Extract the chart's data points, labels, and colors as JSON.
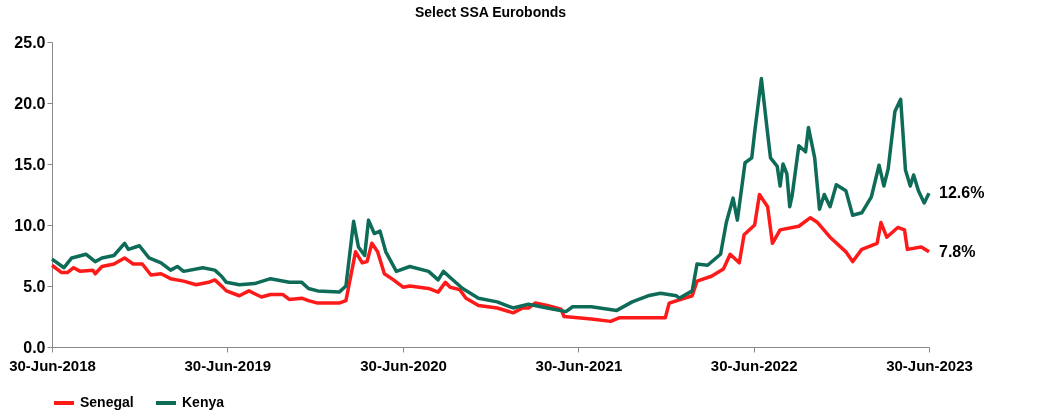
{
  "chart_data": {
    "type": "line",
    "title": "Select SSA Eurobonds",
    "xlim": [
      "2018-06-30",
      "2023-06-30"
    ],
    "xticks": [
      {
        "value": "2018-06-30",
        "label": "30-Jun-2018"
      },
      {
        "value": "2019-06-30",
        "label": "30-Jun-2019"
      },
      {
        "value": "2020-06-30",
        "label": "30-Jun-2020"
      },
      {
        "value": "2021-06-30",
        "label": "30-Jun-2021"
      },
      {
        "value": "2022-06-30",
        "label": "30-Jun-2022"
      },
      {
        "value": "2023-06-30",
        "label": "30-Jun-2023"
      }
    ],
    "ylim": [
      0,
      25
    ],
    "yticks": [
      {
        "value": 0,
        "label": "0.0"
      },
      {
        "value": 5,
        "label": "5.0"
      },
      {
        "value": 10,
        "label": "10.0"
      },
      {
        "value": 15,
        "label": "15.0"
      },
      {
        "value": 20,
        "label": "20.0"
      },
      {
        "value": 25,
        "label": "25.0"
      }
    ],
    "legend": "bottom",
    "series": [
      {
        "name": "Senegal",
        "color": "#ff1a1a",
        "x": [
          "2018-06-30",
          "2018-07-20",
          "2018-08-01",
          "2018-08-14",
          "2018-08-28",
          "2018-09-23",
          "2018-09-28",
          "2018-10-12",
          "2018-11-06",
          "2018-11-28",
          "2018-12-16",
          "2019-01-04",
          "2019-01-22",
          "2019-02-12",
          "2019-03-04",
          "2019-03-31",
          "2019-04-26",
          "2019-05-22",
          "2019-06-04",
          "2019-06-18",
          "2019-06-28",
          "2019-07-25",
          "2019-08-14",
          "2019-09-09",
          "2019-09-28",
          "2019-10-24",
          "2019-11-06",
          "2019-12-02",
          "2019-12-16",
          "2020-01-04",
          "2020-02-18",
          "2020-03-03",
          "2020-03-23",
          "2020-04-06",
          "2020-04-16",
          "2020-04-26",
          "2020-05-08",
          "2020-05-22",
          "2020-06-10",
          "2020-06-30",
          "2020-07-14",
          "2020-08-22",
          "2020-09-11",
          "2020-09-26",
          "2020-10-06",
          "2020-10-26",
          "2020-11-08",
          "2020-12-04",
          "2021-01-12",
          "2021-02-14",
          "2021-03-06",
          "2021-03-18",
          "2021-04-01",
          "2021-04-26",
          "2021-05-25",
          "2021-05-31",
          "2021-07-27",
          "2021-09-05",
          "2021-09-24",
          "2021-11-22",
          "2021-12-28",
          "2022-01-05",
          "2022-02-22",
          "2022-03-04",
          "2022-04-03",
          "2022-04-28",
          "2022-05-12",
          "2022-05-31",
          "2022-06-10",
          "2022-07-02",
          "2022-07-12",
          "2022-07-29",
          "2022-08-08",
          "2022-08-24",
          "2022-10-02",
          "2022-10-26",
          "2022-11-10",
          "2022-12-06",
          "2023-01-08",
          "2023-01-22",
          "2023-02-10",
          "2023-03-14",
          "2023-03-22",
          "2023-04-03",
          "2023-04-26",
          "2023-05-10",
          "2023-05-16",
          "2023-06-14",
          "2023-06-30"
        ],
        "values": [
          6.7,
          6.1,
          6.1,
          6.5,
          6.2,
          6.3,
          6.0,
          6.6,
          6.8,
          7.3,
          6.8,
          6.8,
          5.9,
          6.0,
          5.6,
          5.4,
          5.1,
          5.3,
          5.5,
          5.0,
          4.6,
          4.2,
          4.6,
          4.1,
          4.3,
          4.3,
          3.9,
          4.0,
          3.8,
          3.6,
          3.6,
          3.8,
          7.8,
          6.9,
          7.0,
          8.5,
          7.8,
          6.0,
          5.5,
          4.9,
          5.0,
          4.8,
          4.5,
          5.3,
          4.9,
          4.7,
          4.0,
          3.4,
          3.2,
          2.8,
          3.2,
          3.2,
          3.6,
          3.4,
          3.1,
          2.5,
          2.3,
          2.1,
          2.4,
          2.4,
          2.4,
          3.6,
          4.2,
          5.4,
          5.8,
          6.4,
          7.6,
          6.9,
          9.2,
          10.0,
          12.5,
          11.5,
          8.5,
          9.6,
          9.9,
          10.6,
          10.2,
          9.0,
          7.8,
          7.0,
          8.0,
          8.5,
          10.2,
          9.0,
          9.8,
          9.6,
          8.0,
          8.2,
          7.8
        ]
      },
      {
        "name": "Kenya",
        "color": "#0e6b58",
        "x": [
          "2018-06-30",
          "2018-07-25",
          "2018-08-10",
          "2018-09-09",
          "2018-09-28",
          "2018-10-12",
          "2018-11-06",
          "2018-11-28",
          "2018-12-06",
          "2018-12-29",
          "2019-01-18",
          "2019-02-12",
          "2019-03-04",
          "2019-03-18",
          "2019-03-31",
          "2019-05-10",
          "2019-06-04",
          "2019-06-18",
          "2019-06-28",
          "2019-07-25",
          "2019-08-26",
          "2019-09-28",
          "2019-11-06",
          "2019-12-02",
          "2019-12-16",
          "2020-01-04",
          "2020-02-18",
          "2020-03-03",
          "2020-03-19",
          "2020-03-29",
          "2020-04-11",
          "2020-04-19",
          "2020-05-01",
          "2020-05-13",
          "2020-05-25",
          "2020-06-16",
          "2020-07-14",
          "2020-08-22",
          "2020-09-11",
          "2020-09-22",
          "2020-10-06",
          "2020-11-01",
          "2020-12-04",
          "2021-01-12",
          "2021-02-14",
          "2021-03-18",
          "2021-04-26",
          "2021-06-04",
          "2021-06-18",
          "2021-07-27",
          "2021-09-18",
          "2021-10-20",
          "2021-11-22",
          "2021-12-18",
          "2022-01-20",
          "2022-01-26",
          "2022-02-22",
          "2022-03-04",
          "2022-03-26",
          "2022-04-22",
          "2022-05-04",
          "2022-05-18",
          "2022-05-27",
          "2022-06-12",
          "2022-06-26",
          "2022-07-02",
          "2022-07-16",
          "2022-07-29",
          "2022-08-04",
          "2022-08-18",
          "2022-08-24",
          "2022-08-30",
          "2022-09-07",
          "2022-09-13",
          "2022-09-18",
          "2022-10-02",
          "2022-10-16",
          "2022-10-22",
          "2022-11-04",
          "2022-11-14",
          "2022-11-24",
          "2022-12-06",
          "2022-12-19",
          "2023-01-08",
          "2023-01-22",
          "2023-02-10",
          "2023-03-02",
          "2023-03-18",
          "2023-03-28",
          "2023-04-06",
          "2023-04-20",
          "2023-05-02",
          "2023-05-12",
          "2023-05-22",
          "2023-05-29",
          "2023-06-08",
          "2023-06-20",
          "2023-06-30"
        ],
        "values": [
          7.2,
          6.5,
          7.3,
          7.6,
          7.0,
          7.3,
          7.5,
          8.5,
          8.0,
          8.3,
          7.3,
          6.9,
          6.3,
          6.6,
          6.2,
          6.5,
          6.3,
          5.8,
          5.3,
          5.1,
          5.2,
          5.6,
          5.3,
          5.3,
          4.8,
          4.6,
          4.5,
          5.0,
          10.3,
          8.2,
          7.5,
          10.4,
          9.3,
          9.5,
          7.8,
          6.2,
          6.6,
          6.2,
          5.5,
          6.2,
          5.7,
          4.8,
          4.0,
          3.7,
          3.2,
          3.5,
          3.2,
          2.9,
          3.3,
          3.3,
          3.0,
          3.7,
          4.2,
          4.4,
          4.2,
          4.0,
          4.6,
          6.8,
          6.7,
          7.6,
          10.2,
          12.2,
          10.4,
          15.1,
          15.5,
          17.6,
          22.0,
          17.5,
          15.5,
          14.8,
          13.2,
          15.0,
          14.2,
          11.5,
          12.4,
          16.5,
          16.0,
          18.0,
          15.5,
          11.3,
          12.5,
          11.5,
          13.3,
          12.8,
          10.8,
          11.0,
          12.3,
          14.9,
          13.2,
          14.6,
          19.3,
          20.3,
          14.5,
          13.2,
          14.1,
          12.8,
          11.8,
          12.6
        ]
      }
    ],
    "annotations": [
      {
        "text": "12.6%",
        "x": "2023-06-30",
        "y": 12.6
      },
      {
        "text": "7.8%",
        "x": "2023-06-30",
        "y": 7.8
      }
    ]
  }
}
